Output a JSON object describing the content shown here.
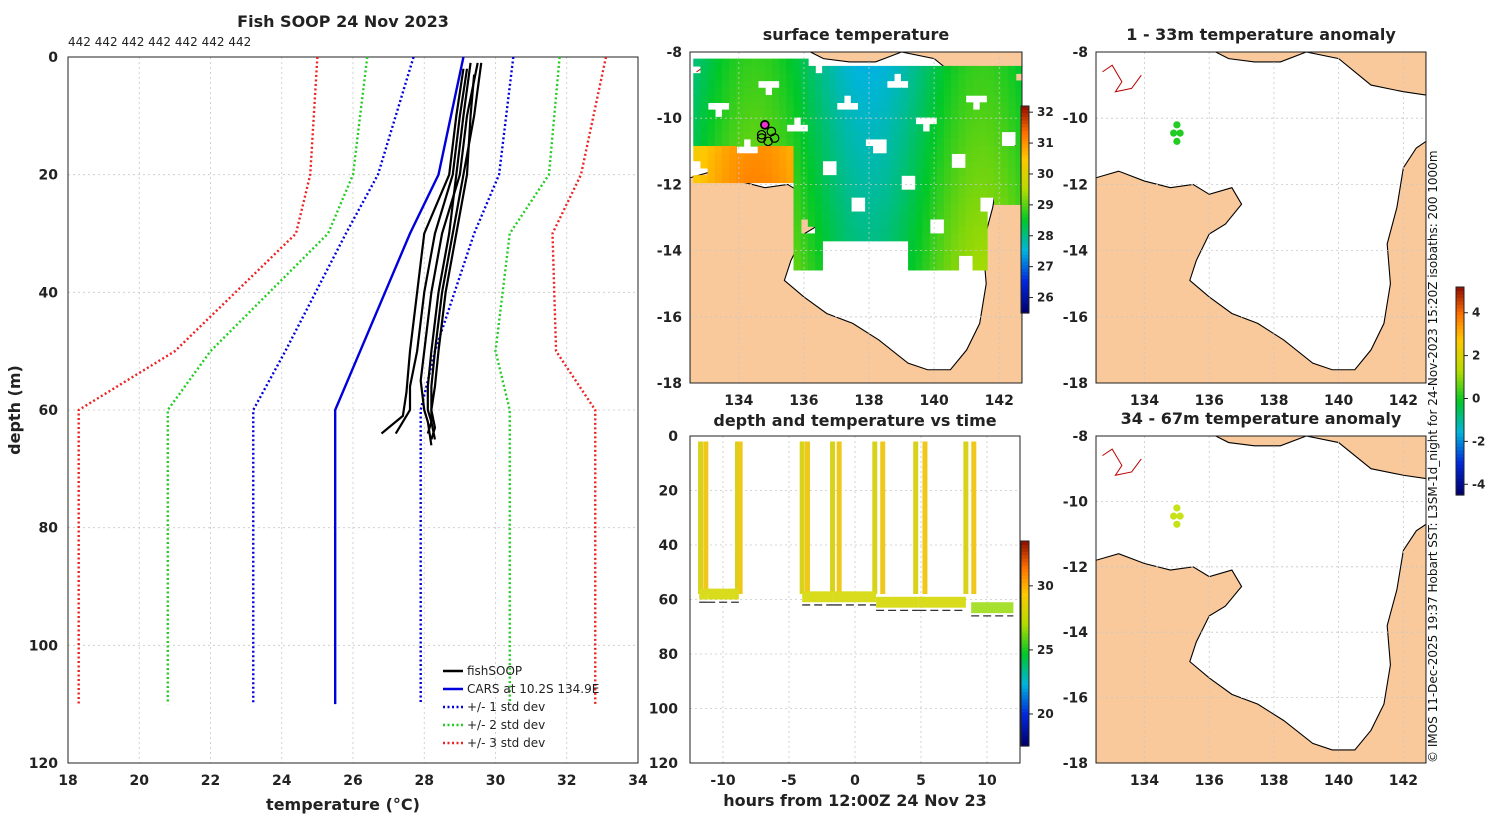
{
  "page": {
    "title": "Fish SOOP 24 Nov 2023",
    "copyright": "© IMOS 11-Dec-2025 19:37 Hobart SST: L3SM-1d_night for 24-Nov-2023 15:20Z isobaths: 200  1000m"
  },
  "chart_data": [
    {
      "id": "profile",
      "type": "line",
      "title": "Fish SOOP 24 Nov 2023",
      "xlabel": "temperature (°C)",
      "ylabel": "depth (m)",
      "xlim": [
        18,
        34
      ],
      "ylim": [
        120,
        0
      ],
      "xticks": [
        18,
        20,
        22,
        24,
        26,
        28,
        30,
        32,
        34
      ],
      "yticks": [
        0,
        20,
        40,
        60,
        80,
        100,
        120
      ],
      "top_annotation": "442 442 442 442 442 442 442",
      "legend": [
        "fishSOOP",
        "CARS at 10.2S 134.9E",
        "+/- 1 std dev",
        "+/- 2 std dev",
        "+/- 3 std dev"
      ],
      "legend_position": "bottom-right",
      "depths": [
        0,
        20,
        30,
        50,
        60,
        110
      ],
      "series": [
        {
          "name": "CARS at 10.2S 134.9E",
          "color": "#0000dd",
          "style": "solid",
          "temp": [
            29.1,
            28.4,
            27.6,
            26.2,
            25.5,
            25.5
          ]
        },
        {
          "name": "+1 std dev",
          "color": "#0000dd",
          "style": "dotted",
          "temp": [
            30.5,
            30.1,
            29.4,
            28.3,
            27.9,
            27.9
          ]
        },
        {
          "name": "-1 std dev",
          "color": "#0000dd",
          "style": "dotted",
          "temp": [
            27.7,
            26.7,
            25.8,
            24.1,
            23.2,
            23.2
          ]
        },
        {
          "name": "+2 std dev",
          "color": "#22cc22",
          "style": "dotted",
          "temp": [
            31.8,
            31.5,
            30.4,
            30.0,
            30.4,
            30.4
          ]
        },
        {
          "name": "-2 std dev",
          "color": "#22cc22",
          "style": "dotted",
          "temp": [
            26.4,
            26.0,
            25.3,
            22.0,
            20.8,
            20.8
          ]
        },
        {
          "name": "+3 std dev",
          "color": "#ee2222",
          "style": "dotted",
          "temp": [
            33.1,
            32.4,
            31.6,
            31.7,
            32.8,
            32.8
          ]
        },
        {
          "name": "-3 std dev",
          "color": "#ee2222",
          "style": "dotted",
          "temp": [
            25.0,
            24.8,
            24.4,
            21.0,
            18.3,
            18.3
          ]
        }
      ],
      "fishsoop_profiles": [
        {
          "depth": [
            1,
            10,
            20,
            30,
            40,
            50,
            56,
            60,
            62,
            64
          ],
          "temp": [
            29.3,
            29.1,
            28.9,
            28.7,
            28.4,
            28.2,
            28.1,
            28.1,
            28.2,
            28.1
          ]
        },
        {
          "depth": [
            2,
            10,
            20,
            30,
            40,
            50,
            56,
            60,
            62,
            64
          ],
          "temp": [
            29.2,
            29.0,
            28.8,
            28.3,
            28.0,
            27.8,
            27.6,
            27.6,
            27.4,
            27.2
          ]
        },
        {
          "depth": [
            1,
            10,
            20,
            30,
            40,
            50,
            55,
            60,
            62,
            66
          ],
          "temp": [
            29.5,
            29.2,
            29.0,
            28.5,
            28.2,
            28.0,
            27.9,
            28.0,
            28.1,
            28.2
          ]
        },
        {
          "depth": [
            3,
            10,
            20,
            30,
            40,
            50,
            56,
            60,
            63,
            65
          ],
          "temp": [
            29.4,
            29.3,
            29.2,
            28.9,
            28.6,
            28.4,
            28.3,
            28.2,
            28.3,
            28.2
          ]
        },
        {
          "depth": [
            2,
            10,
            20,
            30,
            40,
            50,
            57,
            61,
            63,
            64
          ],
          "temp": [
            29.1,
            28.9,
            28.7,
            28.0,
            27.8,
            27.6,
            27.5,
            27.4,
            27.0,
            26.8
          ]
        },
        {
          "depth": [
            1,
            10,
            20,
            30,
            40,
            50,
            56,
            60,
            62,
            65
          ],
          "temp": [
            29.6,
            29.4,
            29.1,
            28.8,
            28.5,
            28.3,
            28.2,
            28.2,
            28.2,
            28.3
          ]
        }
      ]
    },
    {
      "id": "sst_map",
      "type": "heatmap",
      "title": "surface temperature",
      "xlim": [
        132.5,
        142.7
      ],
      "ylim": [
        -18,
        -8
      ],
      "xticks": [
        134,
        136,
        138,
        140,
        142
      ],
      "yticks": [
        -8,
        -10,
        -12,
        -14,
        -16,
        -18
      ],
      "colorbar": {
        "min": 25.5,
        "max": 32.2,
        "ticks": [
          26,
          27,
          28,
          29,
          30,
          31,
          32
        ]
      },
      "markers": [
        {
          "lon": 134.8,
          "lat": -10.2
        },
        {
          "lon": 134.7,
          "lat": -10.5
        },
        {
          "lon": 135.0,
          "lat": -10.4
        },
        {
          "lon": 134.9,
          "lat": -10.7
        },
        {
          "lon": 135.1,
          "lat": -10.6
        },
        {
          "lon": 134.7,
          "lat": -10.6
        }
      ]
    },
    {
      "id": "anom_top",
      "type": "heatmap",
      "title": "1 - 33m temperature anomaly",
      "xlim": [
        132.5,
        142.7
      ],
      "ylim": [
        -18,
        -8
      ],
      "xticks": [
        134,
        136,
        138,
        140,
        142
      ],
      "yticks": [
        -8,
        -10,
        -12,
        -14,
        -16,
        -18
      ]
    },
    {
      "id": "anom_bottom",
      "type": "heatmap",
      "title": "34 - 67m temperature anomaly",
      "xlim": [
        132.5,
        142.7
      ],
      "ylim": [
        -18,
        -8
      ],
      "xticks": [
        134,
        136,
        138,
        140,
        142
      ],
      "yticks": [
        -8,
        -10,
        -12,
        -14,
        -16,
        -18
      ],
      "colorbar": {
        "min": -4.5,
        "max": 5.2,
        "ticks": [
          -4,
          -2,
          0,
          2,
          4
        ]
      }
    },
    {
      "id": "time_depth",
      "type": "scatter",
      "title": "depth and temperature vs time",
      "xlabel": "hours from 12:00Z 24 Nov 23",
      "xlim": [
        -12.5,
        12.5
      ],
      "ylim": [
        120,
        0
      ],
      "xticks": [
        -10,
        -5,
        0,
        5,
        10
      ],
      "yticks": [
        0,
        20,
        40,
        60,
        80,
        100,
        120
      ],
      "colorbar": {
        "min": 17.5,
        "max": 33.5,
        "ticks": [
          20,
          25,
          30
        ]
      },
      "casts": [
        {
          "start": -11.8,
          "end": -11.2,
          "depth": 58
        },
        {
          "start": -11.2,
          "end": -8.8,
          "depth": 58
        },
        {
          "start": -4.0,
          "end": -1.6,
          "depth": 59
        },
        {
          "start": -1.6,
          "end": 1.6,
          "depth": 59
        },
        {
          "start": 1.6,
          "end": 4.8,
          "depth": 61
        },
        {
          "start": 4.8,
          "end": 8.4,
          "depth": 61
        },
        {
          "start": 8.8,
          "end": 12.0,
          "depth": 63
        }
      ],
      "gaps": [
        {
          "start": -8.8,
          "end": -4.0
        }
      ]
    }
  ]
}
